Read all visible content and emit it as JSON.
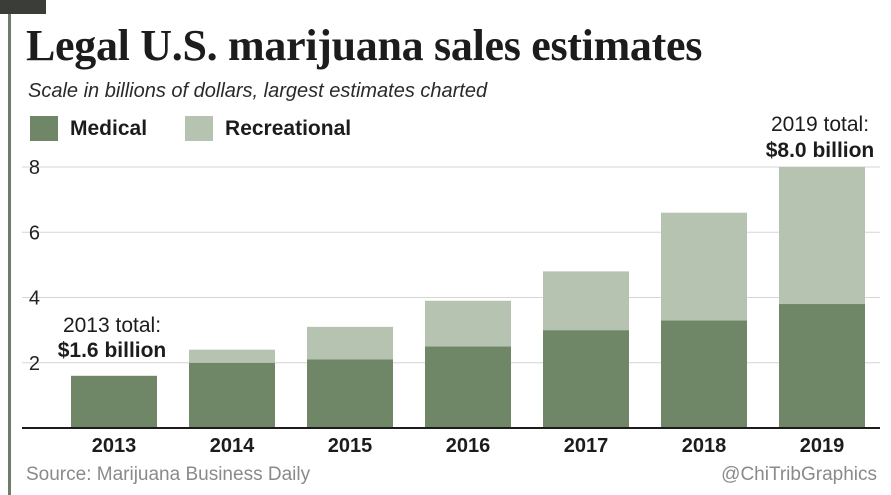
{
  "header": {
    "title": "Legal U.S. marijuana sales estimates",
    "subtitle": "Scale in billions of dollars, largest estimates charted"
  },
  "legend": [
    {
      "label": "Medical",
      "color": "#6f8767"
    },
    {
      "label": "Recreational",
      "color": "#b5c3b0"
    }
  ],
  "annotations": {
    "start_label": "2013 total:",
    "start_value": "$1.6 billion",
    "end_label": "2019 total:",
    "end_value": "$8.0 billion"
  },
  "footer": {
    "source": "Source: Marijuana Business Daily",
    "credit": "@ChiTribGraphics"
  },
  "chart_data": {
    "type": "bar",
    "stacked": true,
    "title": "Legal U.S. marijuana sales estimates",
    "subtitle": "Scale in billions of dollars, largest estimates charted",
    "categories": [
      "2013",
      "2014",
      "2015",
      "2016",
      "2017",
      "2018",
      "2019"
    ],
    "series": [
      {
        "name": "Medical",
        "color": "#6f8767",
        "values": [
          1.6,
          2.0,
          2.1,
          2.5,
          3.0,
          3.3,
          3.8
        ]
      },
      {
        "name": "Recreational",
        "color": "#b5c3b0",
        "values": [
          0.0,
          0.4,
          1.0,
          1.4,
          1.8,
          3.3,
          4.2
        ]
      }
    ],
    "ylim": [
      0,
      8
    ],
    "yticks": [
      2,
      4,
      6,
      8
    ],
    "grid": true,
    "legend_position": "top-left"
  }
}
